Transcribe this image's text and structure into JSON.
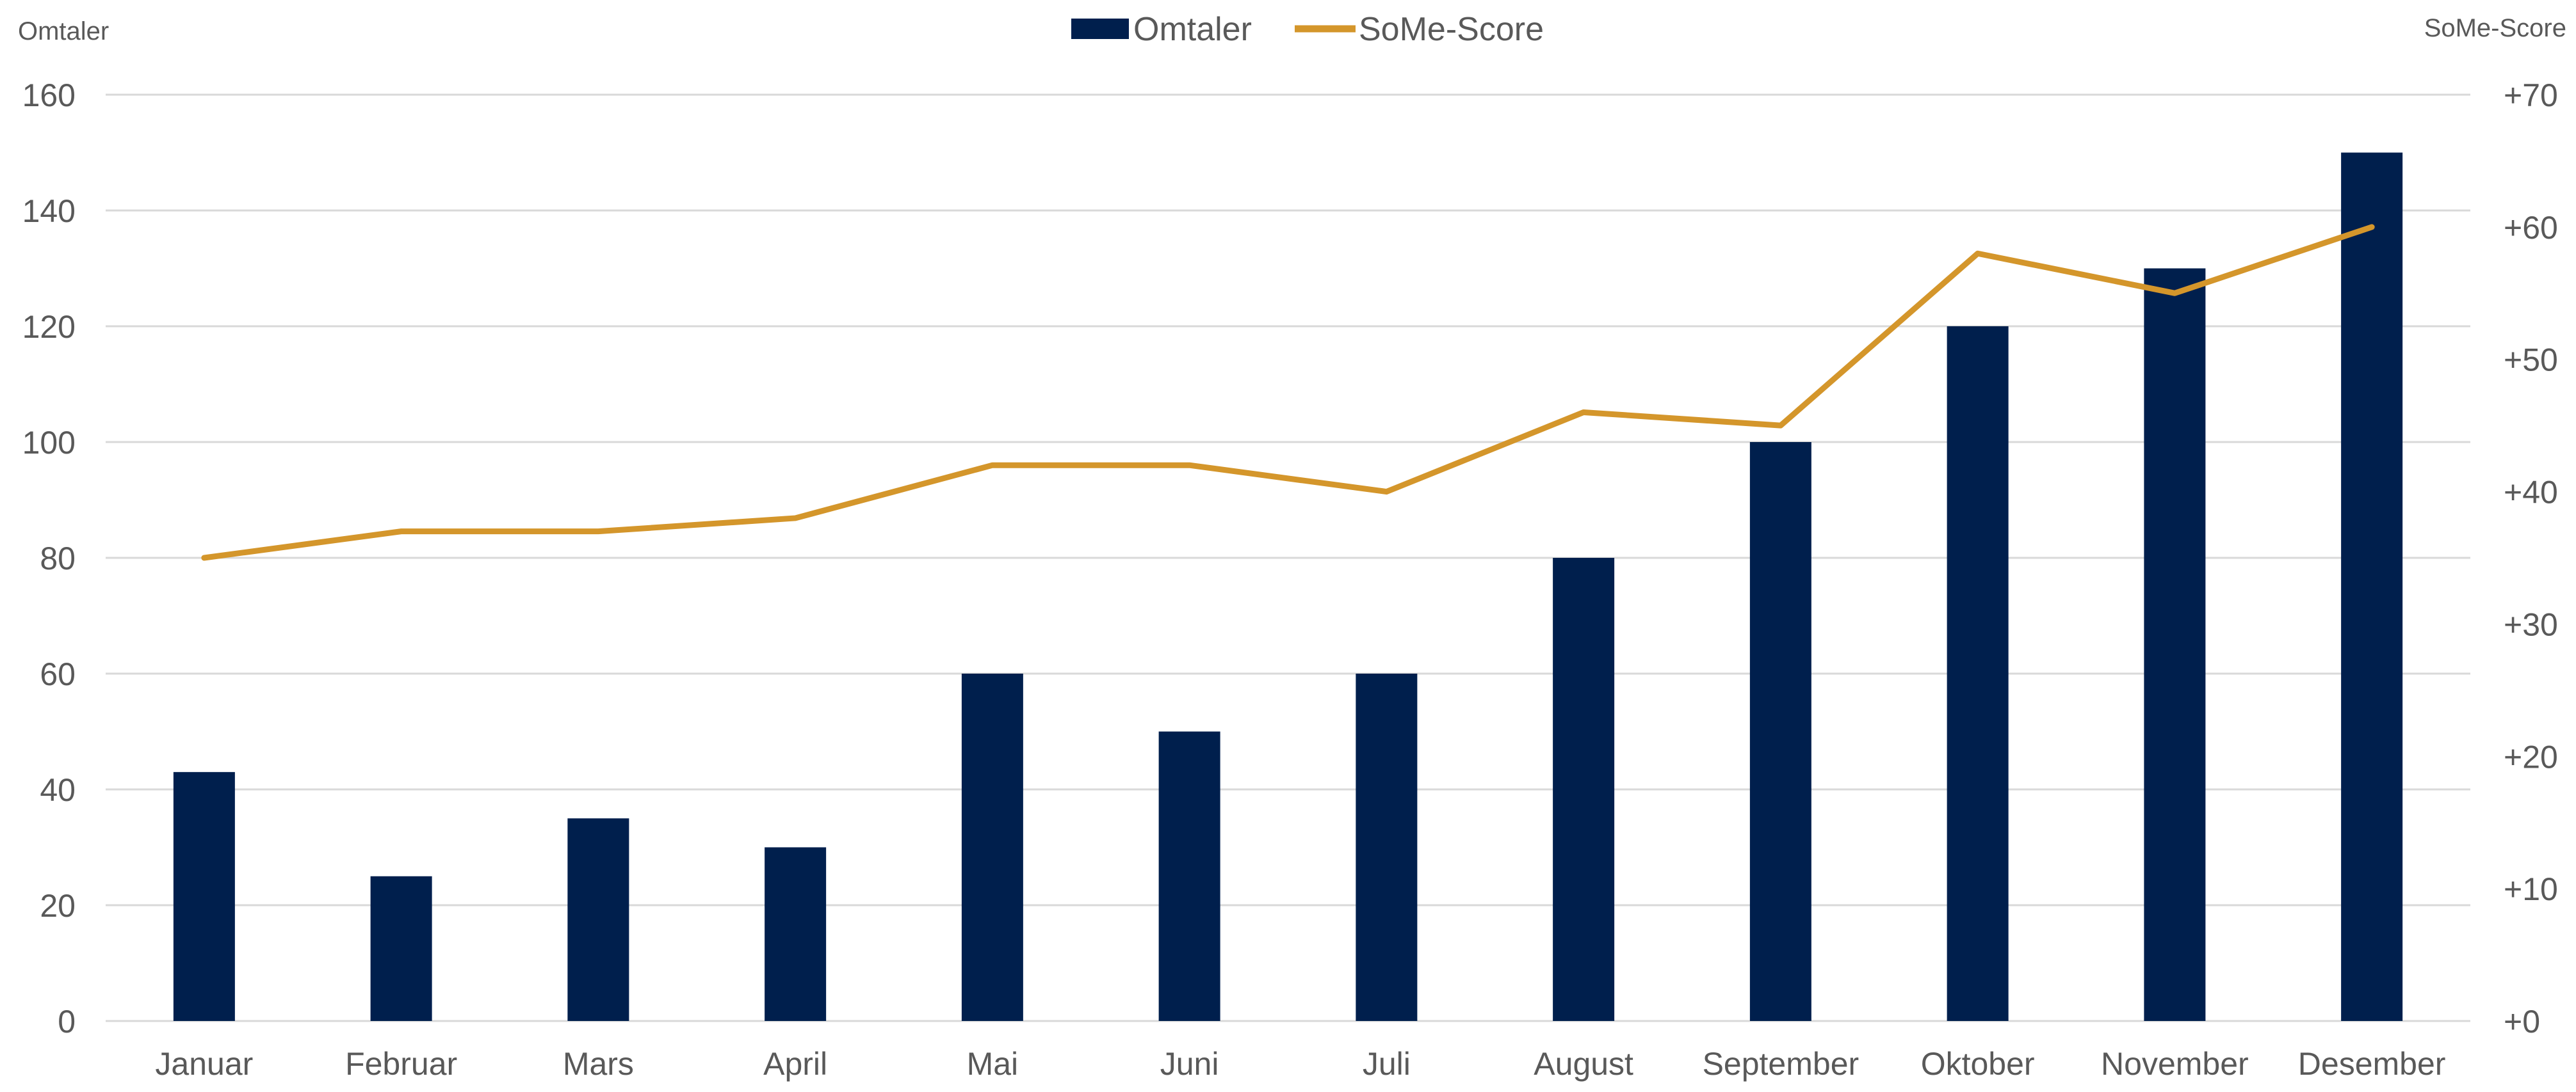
{
  "colors": {
    "bar": "#001f4d",
    "line": "#d4962b",
    "grid": "#d9d9d9",
    "text": "#595959"
  },
  "chart_data": {
    "type": "bar",
    "categories": [
      "Januar",
      "Februar",
      "Mars",
      "April",
      "Mai",
      "Juni",
      "Juli",
      "August",
      "September",
      "Oktober",
      "November",
      "Desember"
    ],
    "series": [
      {
        "name": "Omtaler",
        "type": "bar",
        "axis": "left",
        "values": [
          43,
          25,
          35,
          30,
          60,
          50,
          60,
          80,
          100,
          120,
          130,
          150
        ]
      },
      {
        "name": "SoMe-Score",
        "type": "line",
        "axis": "right",
        "values": [
          35,
          37,
          37,
          38,
          42,
          42,
          40,
          46,
          45,
          58,
          55,
          60
        ]
      }
    ],
    "ylabel": "Omtaler",
    "y2label": "SoMe-Score",
    "ylim": [
      0,
      160
    ],
    "y2lim": [
      0,
      70
    ],
    "yticks": [
      "0",
      "20",
      "40",
      "60",
      "80",
      "100",
      "120",
      "140",
      "160"
    ],
    "y2ticks": [
      "+0",
      "+10",
      "+20",
      "+30",
      "+40",
      "+50",
      "+60",
      "+70"
    ],
    "legend": "top-center",
    "grid": true
  }
}
